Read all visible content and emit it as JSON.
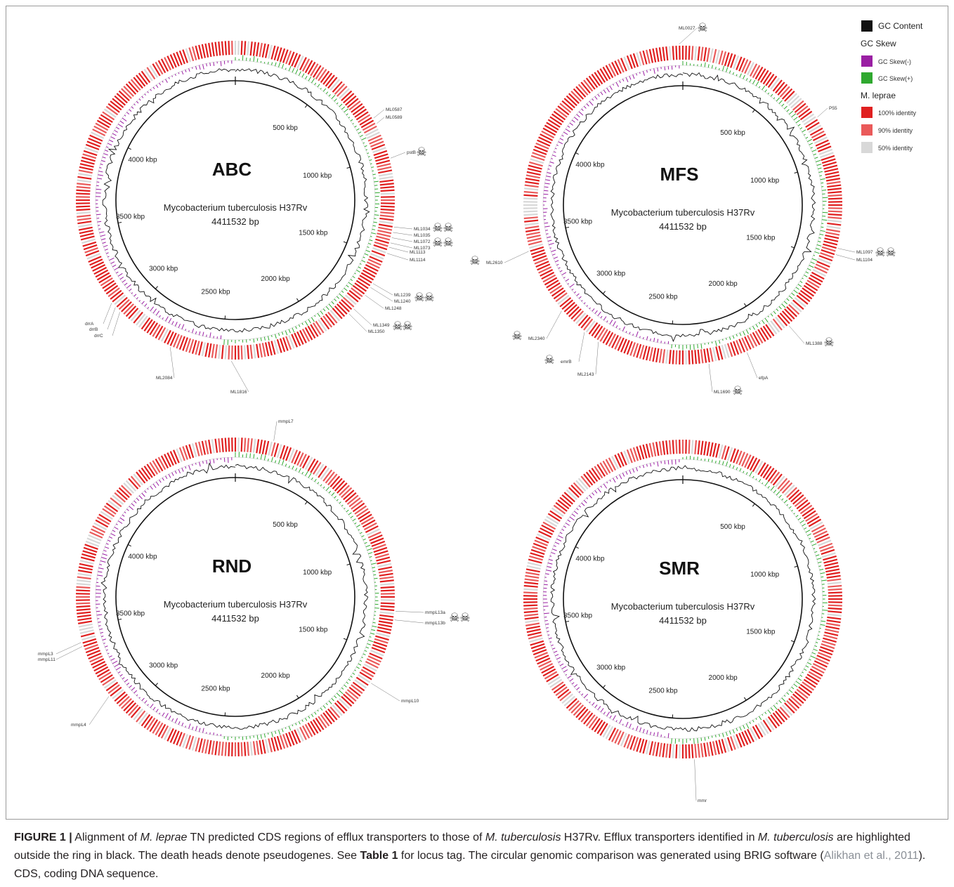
{
  "legend": {
    "gc_content": "GC Content",
    "gc_skew_heading": "GC Skew",
    "gc_skew_neg": "GC Skew(-)",
    "gc_skew_pos": "GC Skew(+)",
    "species_heading": "M. leprae",
    "id100": "100% identity",
    "id90": "90% identity",
    "id50": "50% identity",
    "colors": {
      "gc_content": "#111111",
      "gc_skew_neg": "#9a1fa3",
      "gc_skew_pos": "#2fa82f",
      "id100": "#e02020",
      "id90": "#ea5a5a",
      "id50": "#d8d8d8"
    }
  },
  "panels": [
    {
      "title": "ABC",
      "organism": "Mycobacterium tuberculosis H37Rv",
      "size": "4411532 bp",
      "ticks": [
        "500 kbp",
        "1000 kbp",
        "1500 kbp",
        "2000 kbp",
        "2500 kbp",
        "3000 kbp",
        "3500 kbp",
        "4000 kbp"
      ],
      "genes": [
        {
          "label": "ML0587"
        },
        {
          "label": "ML0589"
        },
        {
          "label": "pstB",
          "pseudo": true
        },
        {
          "label": "ML1034",
          "pseudo": true
        },
        {
          "label": "ML1035",
          "pseudo": true
        },
        {
          "label": "ML1072",
          "pseudo": true
        },
        {
          "label": "ML1073",
          "pseudo": true
        },
        {
          "label": "ML1113"
        },
        {
          "label": "ML1114"
        },
        {
          "label": "ML1239",
          "pseudo": true
        },
        {
          "label": "ML1240",
          "pseudo": true
        },
        {
          "label": "ML1248"
        },
        {
          "label": "ML1349",
          "pseudo": true
        },
        {
          "label": "ML1350",
          "pseudo": true
        },
        {
          "label": "ML1816"
        },
        {
          "label": "ML2084"
        },
        {
          "label": "drrA"
        },
        {
          "label": "drrB"
        },
        {
          "label": "drrC"
        }
      ]
    },
    {
      "title": "MFS",
      "organism": "Mycobacterium tuberculosis H37Rv",
      "size": "4411532 bp",
      "ticks": [
        "500 kbp",
        "1000 kbp",
        "1500 kbp",
        "2000 kbp",
        "2500 kbp",
        "3000 kbp",
        "3500 kbp",
        "4000 kbp"
      ],
      "genes": [
        {
          "label": "ML0027",
          "pseudo": true
        },
        {
          "label": "P55"
        },
        {
          "label": "ML1097",
          "pseudo": true
        },
        {
          "label": "ML1104",
          "pseudo": true
        },
        {
          "label": "ML1388",
          "pseudo": true
        },
        {
          "label": "ML1690",
          "pseudo": true
        },
        {
          "label": "efpA"
        },
        {
          "label": "ML2143"
        },
        {
          "label": "emrB",
          "pseudo": true
        },
        {
          "label": "ML2340",
          "pseudo": true
        },
        {
          "label": "ML2610",
          "pseudo": true
        }
      ]
    },
    {
      "title": "RND",
      "organism": "Mycobacterium tuberculosis H37Rv",
      "size": "4411532 bp",
      "ticks": [
        "500 kbp",
        "1000 kbp",
        "1500 kbp",
        "2000 kbp",
        "2500 kbp",
        "3000 kbp",
        "3500 kbp",
        "4000 kbp"
      ],
      "genes": [
        {
          "label": "mmpL7"
        },
        {
          "label": "mmpL13a",
          "pseudo": true
        },
        {
          "label": "mmpL13b",
          "pseudo": true
        },
        {
          "label": "mmpL10"
        },
        {
          "label": "mmpL4"
        },
        {
          "label": "mmpL3"
        },
        {
          "label": "mmpL11"
        }
      ]
    },
    {
      "title": "SMR",
      "organism": "Mycobacterium tuberculosis H37Rv",
      "size": "4411532 bp",
      "ticks": [
        "500 kbp",
        "1000 kbp",
        "1500 kbp",
        "2000 kbp",
        "2500 kbp",
        "3000 kbp",
        "3500 kbp",
        "4000 kbp"
      ],
      "genes": [
        {
          "label": "mmr"
        }
      ]
    }
  ],
  "caption": {
    "label": "FIGURE 1 |",
    "t1": " Alignment of ",
    "sp1": "M. leprae",
    "t2": " TN predicted CDS regions of efflux transporters to those of ",
    "sp2": "M. tuberculosis",
    "t3": " H37Rv. Efflux transporters identified in ",
    "sp3": "M. tuberculosis",
    "t4": " are highlighted outside the ring in black. The death heads denote pseudogenes. See ",
    "table_ref": "Table 1",
    "t5": " for locus tag. The circular genomic comparison was generated using BRIG software (",
    "citation": "Alikhan et al., 2011",
    "t6": "). CDS, coding DNA sequence."
  }
}
